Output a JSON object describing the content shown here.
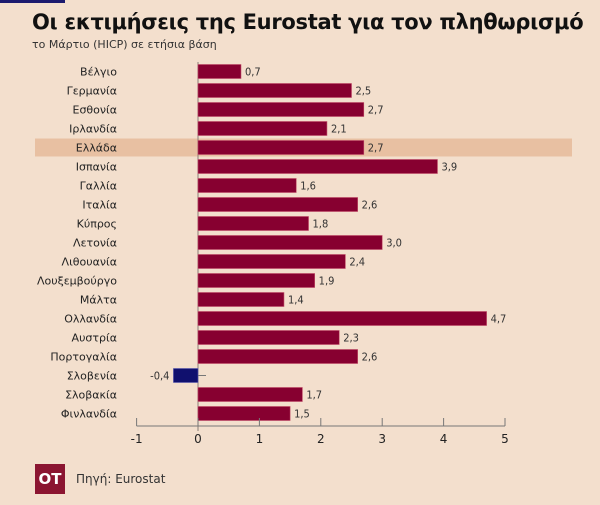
{
  "header": {
    "title": "Οι εκτιμήσεις της Eurostat για τον πληθωρισμό",
    "subtitle": "το Μάρτιο (HICP) σε ετήσια βάση"
  },
  "footer": {
    "logo_text": "ΟΤ",
    "source": "Πηγή: Eurostat"
  },
  "colors": {
    "background": "#f3dfcd",
    "positive_bar": "#870030",
    "negative_bar": "#10106e",
    "highlight_row": "#e8c0a2",
    "logo": "#8b1531",
    "top_accent": "#1b1a6e"
  },
  "chart_data": {
    "type": "bar",
    "orientation": "horizontal",
    "title": "Οι εκτιμήσεις της Eurostat για τον πληθωρισμό",
    "subtitle": "το Μάρτιο (HICP) σε ετήσια βάση",
    "xlabel": "",
    "ylabel": "",
    "xlim": [
      -1,
      5
    ],
    "xticks": [
      -1,
      0,
      1,
      2,
      3,
      4,
      5
    ],
    "grid": false,
    "highlight": "Ελλάδα",
    "categories": [
      "Βέλγιο",
      "Γερμανία",
      "Εσθονία",
      "Ιρλανδία",
      "Ελλάδα",
      "Ισπανία",
      "Γαλλία",
      "Ιταλία",
      "Κύπρος",
      "Λετονία",
      "Λιθουανία",
      "Λουξεμβούργο",
      "Μάλτα",
      "Ολλανδία",
      "Αυστρία",
      "Πορτογαλία",
      "Σλοβενία",
      "Σλοβακία",
      "Φινλανδία"
    ],
    "values": [
      0.7,
      2.5,
      2.7,
      2.1,
      2.7,
      3.9,
      1.6,
      2.6,
      1.8,
      3.0,
      2.4,
      1.9,
      1.4,
      4.7,
      2.3,
      2.6,
      -0.4,
      1.7,
      1.5
    ],
    "value_labels": [
      "0,7",
      "2,5",
      "2,7",
      "2,1",
      "2,7",
      "3,9",
      "1,6",
      "2,6",
      "1,8",
      "3,0",
      "2,4",
      "1,9",
      "1,4",
      "4,7",
      "2,3",
      "2,6",
      "-0,4",
      "1,7",
      "1,5"
    ]
  }
}
